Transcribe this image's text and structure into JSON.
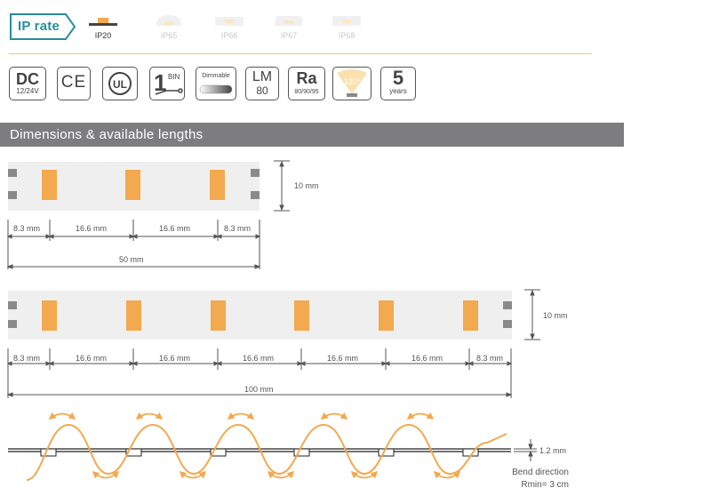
{
  "ip_rate": {
    "title": "IP rate",
    "ratings": [
      {
        "label": "IP20",
        "active": true
      },
      {
        "label": "IP65",
        "active": false
      },
      {
        "label": "IP66",
        "active": false
      },
      {
        "label": "IP67",
        "active": false
      },
      {
        "label": "IP68",
        "active": false
      }
    ]
  },
  "certifications": {
    "dc": {
      "main": "DC",
      "sub": "12/24V"
    },
    "ce": {
      "main": "CE"
    },
    "ul": {
      "main": "UL"
    },
    "bin": {
      "main": "1",
      "sub": "BIN"
    },
    "dimmable": {
      "main": "Dimmable"
    },
    "lm": {
      "main": "LM",
      "sub": "80"
    },
    "ra": {
      "main": "Ra",
      "sub": "80/90/95"
    },
    "angle": {
      "main": "120°"
    },
    "warranty": {
      "main": "5",
      "sub": "years"
    }
  },
  "section_title": "Dimensions & available lengths",
  "strip_short": {
    "width_label": "10 mm",
    "segments": [
      "8.3 mm",
      "16.6 mm",
      "16.6 mm",
      "8.3 mm"
    ],
    "total": "50 mm"
  },
  "strip_long": {
    "width_label": "10 mm",
    "segments": [
      "8.3 mm",
      "16.6 mm",
      "16.6 mm",
      "16.6 mm",
      "16.6 mm",
      "16.6 mm",
      "8.3 mm"
    ],
    "total": "100 mm"
  },
  "bend": {
    "thickness": "1.2 mm",
    "direction": "Bend direction",
    "radius": "Rmin= 3 cm"
  },
  "colors": {
    "teal": "#2a8c9b",
    "led": "#f3a94d",
    "header": "#7d7d80"
  }
}
